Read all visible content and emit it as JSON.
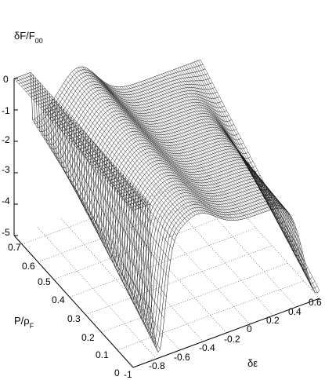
{
  "chart_data": {
    "type": "surface",
    "z_label": {
      "main": "δF/F",
      "sub": "00"
    },
    "y_label": {
      "main": "P/ρ",
      "sub": "F"
    },
    "x_label": "δε",
    "z_ticks": [
      "0",
      "-1",
      "-2",
      "-3",
      "-4",
      "-5"
    ],
    "y_ticks": [
      "0.7",
      "0.6",
      "0.5",
      "0.4",
      "0.3",
      "0.2",
      "0.1",
      "0"
    ],
    "x_ticks": [
      "-1",
      "-0.8",
      "-0.6",
      "-0.4",
      "-0.2",
      "0",
      "0.2",
      "0.4",
      "0.6"
    ],
    "x_range": [
      -1,
      0.6
    ],
    "y_range": [
      0,
      0.75
    ],
    "z_range": [
      -5,
      0
    ],
    "grid": true,
    "surface": "wireframe mesh of δF/F00 over δε and P/ρF: flat plane at 0 for δε < -0.8; double-well valleys near δε ≈ -0.8 and δε ≈ 0.6 reaching about -5 at P/ρF = 0, separated by a ridge near δε ≈ -0.5"
  }
}
